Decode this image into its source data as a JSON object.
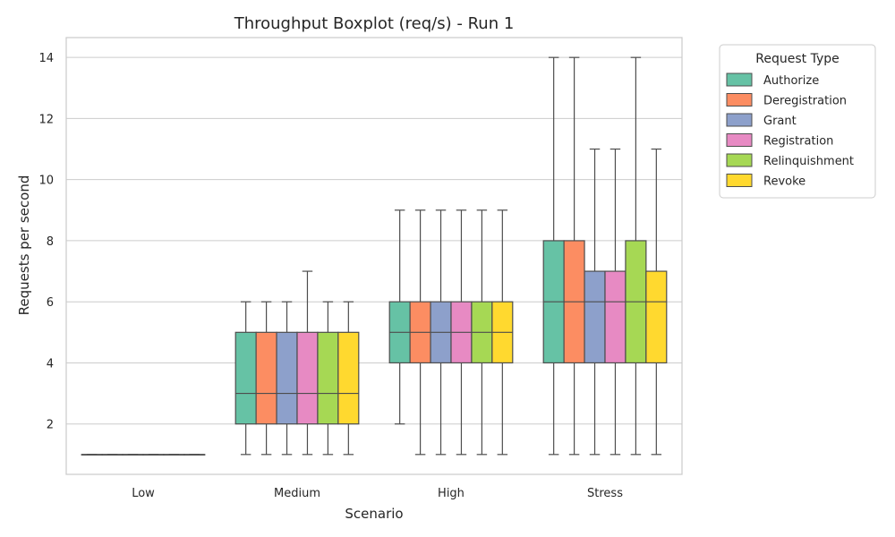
{
  "chart_data": {
    "type": "boxplot",
    "title": "Throughput Boxplot (req/s) - Run 1",
    "xlabel": "Scenario",
    "ylabel": "Requests per second",
    "categories": [
      "Low",
      "Medium",
      "High",
      "Stress"
    ],
    "ylim": [
      0.35,
      14.65
    ],
    "yticks": [
      2,
      4,
      6,
      8,
      10,
      12,
      14
    ],
    "grid": "horizontal",
    "legend": {
      "title": "Request Type",
      "placement": "outside-top-right"
    },
    "colors": [
      "#66c2a5",
      "#fc8d62",
      "#8da0cb",
      "#e78ac3",
      "#a6d854",
      "#ffd92f"
    ],
    "series": [
      {
        "name": "Authorize",
        "boxes": [
          {
            "min": 1,
            "q1": 1,
            "median": 1,
            "q3": 1,
            "max": 1
          },
          {
            "min": 1,
            "q1": 2,
            "median": 3,
            "q3": 5,
            "max": 6
          },
          {
            "min": 2,
            "q1": 4,
            "median": 5,
            "q3": 6,
            "max": 9
          },
          {
            "min": 1,
            "q1": 4,
            "median": 6,
            "q3": 8,
            "max": 14
          }
        ]
      },
      {
        "name": "Deregistration",
        "boxes": [
          {
            "min": 1,
            "q1": 1,
            "median": 1,
            "q3": 1,
            "max": 1
          },
          {
            "min": 1,
            "q1": 2,
            "median": 3,
            "q3": 5,
            "max": 6
          },
          {
            "min": 1,
            "q1": 4,
            "median": 5,
            "q3": 6,
            "max": 9
          },
          {
            "min": 1,
            "q1": 4,
            "median": 6,
            "q3": 8,
            "max": 14
          }
        ]
      },
      {
        "name": "Grant",
        "boxes": [
          {
            "min": 1,
            "q1": 1,
            "median": 1,
            "q3": 1,
            "max": 1
          },
          {
            "min": 1,
            "q1": 2,
            "median": 3,
            "q3": 5,
            "max": 6
          },
          {
            "min": 1,
            "q1": 4,
            "median": 5,
            "q3": 6,
            "max": 9
          },
          {
            "min": 1,
            "q1": 4,
            "median": 6,
            "q3": 7,
            "max": 11
          }
        ]
      },
      {
        "name": "Registration",
        "boxes": [
          {
            "min": 1,
            "q1": 1,
            "median": 1,
            "q3": 1,
            "max": 1
          },
          {
            "min": 1,
            "q1": 2,
            "median": 3,
            "q3": 5,
            "max": 7
          },
          {
            "min": 1,
            "q1": 4,
            "median": 5,
            "q3": 6,
            "max": 9
          },
          {
            "min": 1,
            "q1": 4,
            "median": 6,
            "q3": 7,
            "max": 11
          }
        ]
      },
      {
        "name": "Relinquishment",
        "boxes": [
          {
            "min": 1,
            "q1": 1,
            "median": 1,
            "q3": 1,
            "max": 1
          },
          {
            "min": 1,
            "q1": 2,
            "median": 3,
            "q3": 5,
            "max": 6
          },
          {
            "min": 1,
            "q1": 4,
            "median": 5,
            "q3": 6,
            "max": 9
          },
          {
            "min": 1,
            "q1": 4,
            "median": 6,
            "q3": 8,
            "max": 14
          }
        ]
      },
      {
        "name": "Revoke",
        "boxes": [
          {
            "min": 1,
            "q1": 1,
            "median": 1,
            "q3": 1,
            "max": 1
          },
          {
            "min": 1,
            "q1": 2,
            "median": 3,
            "q3": 5,
            "max": 6
          },
          {
            "min": 1,
            "q1": 4,
            "median": 5,
            "q3": 6,
            "max": 9
          },
          {
            "min": 1,
            "q1": 4,
            "median": 6,
            "q3": 7,
            "max": 11
          }
        ]
      }
    ]
  }
}
